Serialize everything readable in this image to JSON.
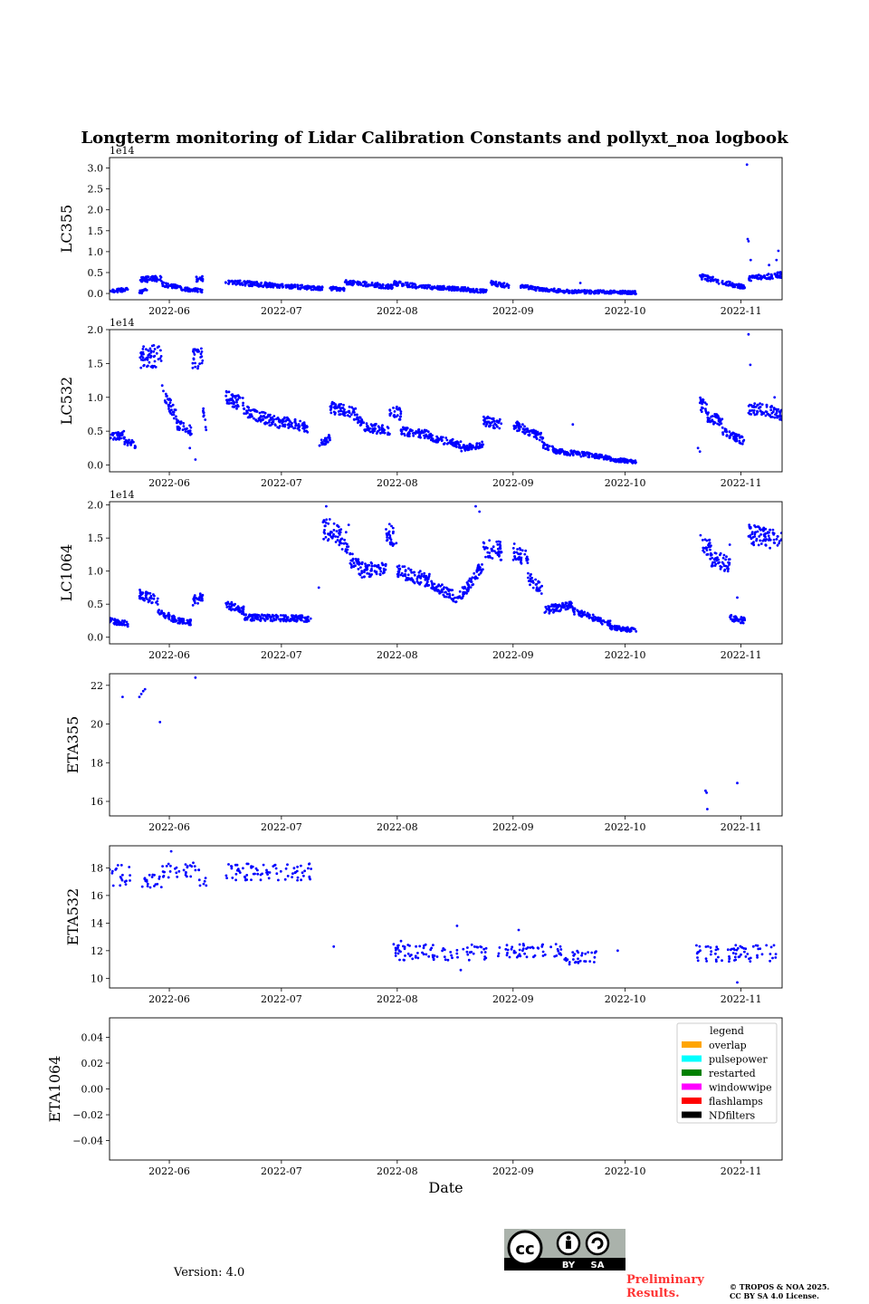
{
  "footer": {
    "version": "Version: 4.0",
    "preliminary_line1": "Preliminary",
    "preliminary_line2": "Results.",
    "copyright_line1": "© TROPOS & NOA 2025.",
    "copyright_line2": "CC BY SA 4.0 License.",
    "cc_badge": {
      "main": "cc",
      "by": "BY",
      "sa": "SA"
    }
  },
  "colors": {
    "points": "#0000ff",
    "axes": "#000000",
    "cc_bg": "#aab2ab",
    "cc_band": "#000000"
  },
  "chart_data": {
    "type": "scatter",
    "title": "Longterm monitoring of Lidar Calibration Constants and pollyxt_noa logbook",
    "xlabel": "Date",
    "x_range_days": [
      -16,
      164
    ],
    "x_axis_origin": "2022-06-01",
    "x_ticks": [
      {
        "label": "2022-06",
        "day": 0
      },
      {
        "label": "2022-07",
        "day": 30
      },
      {
        "label": "2022-08",
        "day": 61
      },
      {
        "label": "2022-09",
        "day": 92
      },
      {
        "label": "2022-10",
        "day": 122
      },
      {
        "label": "2022-11",
        "day": 153
      }
    ],
    "panels": [
      {
        "ylabel": "LC355",
        "offset_text": "1e14",
        "ylim": [
          -0.15,
          3.25
        ],
        "yticks": [
          "0.0",
          "0.5",
          "1.0",
          "1.5",
          "2.0",
          "2.5",
          "3.0"
        ],
        "ytick_values": [
          0,
          0.5,
          1,
          1.5,
          2,
          2.5,
          3
        ],
        "segments": [
          [
            -16,
            -11,
            0.05,
            0.1
          ],
          [
            -8,
            -6,
            0.03,
            0.08
          ],
          [
            -8,
            -2,
            0.33,
            0.36
          ],
          [
            -2,
            3,
            0.22,
            0.14
          ],
          [
            3,
            6,
            0.12,
            0.08
          ],
          [
            6,
            9,
            0.1,
            0.06
          ],
          [
            7,
            9,
            0.35,
            0.35
          ],
          [
            15,
            27,
            0.28,
            0.2
          ],
          [
            27,
            38,
            0.2,
            0.14
          ],
          [
            38,
            41,
            0.13,
            0.12
          ],
          [
            43,
            47,
            0.12,
            0.1
          ],
          [
            47,
            56,
            0.27,
            0.2
          ],
          [
            56,
            60,
            0.18,
            0.16
          ],
          [
            60,
            66,
            0.25,
            0.18
          ],
          [
            66,
            75,
            0.17,
            0.13
          ],
          [
            75,
            80,
            0.12,
            0.1
          ],
          [
            80,
            85,
            0.08,
            0.05
          ],
          [
            86,
            91,
            0.25,
            0.18
          ],
          [
            94,
            99,
            0.18,
            0.1
          ],
          [
            99,
            108,
            0.1,
            0.04
          ],
          [
            108,
            114,
            0.05,
            0.03
          ],
          [
            114,
            125,
            0.04,
            0.02
          ],
          [
            142,
            146,
            0.4,
            0.32
          ],
          [
            146,
            154,
            0.3,
            0.15
          ],
          [
            155,
            164,
            0.35,
            0.45
          ]
        ],
        "extra_points": [
          [
            154.6,
            3.08
          ],
          [
            154.8,
            1.3
          ],
          [
            155,
            1.25
          ],
          [
            155.6,
            0.8
          ],
          [
            163,
            1.02
          ],
          [
            162.5,
            0.8
          ],
          [
            160.5,
            0.68
          ],
          [
            110,
            0.25
          ]
        ]
      },
      {
        "ylabel": "LC532",
        "offset_text": "1e14",
        "ylim": [
          -0.1,
          2.0
        ],
        "yticks": [
          "0.0",
          "0.5",
          "1.0",
          "1.5",
          "2.0"
        ],
        "ytick_values": [
          0,
          0.5,
          1,
          1.5,
          2
        ],
        "segments": [
          [
            -16,
            -12,
            0.4,
            0.45
          ],
          [
            -12,
            -9,
            0.35,
            0.3
          ],
          [
            -8,
            -2,
            1.58,
            1.62
          ],
          [
            -2,
            2,
            1.1,
            0.7
          ],
          [
            2,
            6,
            0.6,
            0.5
          ],
          [
            6,
            9,
            1.55,
            1.6
          ],
          [
            9,
            10,
            0.8,
            0.5
          ],
          [
            15,
            20,
            1.0,
            0.9
          ],
          [
            20,
            30,
            0.8,
            0.6
          ],
          [
            30,
            37,
            0.65,
            0.55
          ],
          [
            40,
            43,
            0.3,
            0.4
          ],
          [
            43,
            50,
            0.85,
            0.75
          ],
          [
            50,
            54,
            0.7,
            0.5
          ],
          [
            54,
            59,
            0.55,
            0.5
          ],
          [
            59,
            62,
            0.82,
            0.75
          ],
          [
            62,
            70,
            0.5,
            0.45
          ],
          [
            70,
            78,
            0.4,
            0.3
          ],
          [
            78,
            84,
            0.25,
            0.3
          ],
          [
            84,
            89,
            0.65,
            0.6
          ],
          [
            92,
            96,
            0.6,
            0.5
          ],
          [
            96,
            100,
            0.5,
            0.4
          ],
          [
            100,
            104,
            0.3,
            0.2
          ],
          [
            104,
            112,
            0.2,
            0.15
          ],
          [
            112,
            118,
            0.15,
            0.1
          ],
          [
            118,
            125,
            0.08,
            0.05
          ],
          [
            142,
            144,
            0.9,
            0.85
          ],
          [
            144,
            148,
            0.7,
            0.65
          ],
          [
            148,
            154,
            0.5,
            0.35
          ],
          [
            155,
            164,
            0.85,
            0.75
          ]
        ],
        "extra_points": [
          [
            155,
            1.93
          ],
          [
            155.5,
            1.48
          ],
          [
            141.5,
            0.25
          ],
          [
            142,
            0.2
          ],
          [
            108,
            0.6
          ],
          [
            7,
            0.08
          ],
          [
            5.5,
            0.25
          ],
          [
            162,
            1.0
          ]
        ]
      },
      {
        "ylabel": "LC1064",
        "offset_text": "1e14",
        "ylim": [
          -0.1,
          2.05
        ],
        "yticks": [
          "0.0",
          "0.5",
          "1.0",
          "1.5",
          "2.0"
        ],
        "ytick_values": [
          0,
          0.5,
          1,
          1.5,
          2
        ],
        "segments": [
          [
            -16,
            -11,
            0.25,
            0.2
          ],
          [
            -8,
            -3,
            0.65,
            0.55
          ],
          [
            -3,
            2,
            0.4,
            0.25
          ],
          [
            2,
            6,
            0.25,
            0.22
          ],
          [
            6,
            9,
            0.55,
            0.6
          ],
          [
            15,
            20,
            0.5,
            0.4
          ],
          [
            20,
            38,
            0.3,
            0.28
          ],
          [
            41,
            44,
            1.6,
            1.65
          ],
          [
            44,
            48,
            1.6,
            1.4
          ],
          [
            48,
            52,
            1.2,
            1.0
          ],
          [
            52,
            58,
            1.0,
            1.05
          ],
          [
            58,
            61,
            1.6,
            1.5
          ],
          [
            61,
            70,
            1.0,
            0.85
          ],
          [
            70,
            77,
            0.8,
            0.6
          ],
          [
            77,
            84,
            0.55,
            1.1
          ],
          [
            84,
            89,
            1.35,
            1.3
          ],
          [
            92,
            96,
            1.3,
            1.2
          ],
          [
            96,
            100,
            0.9,
            0.7
          ],
          [
            100,
            108,
            0.4,
            0.5
          ],
          [
            108,
            118,
            0.4,
            0.2
          ],
          [
            118,
            125,
            0.15,
            0.1
          ],
          [
            142,
            145,
            1.5,
            1.3
          ],
          [
            145,
            150,
            1.2,
            1.1
          ],
          [
            150,
            154,
            0.3,
            0.25
          ],
          [
            155,
            164,
            1.55,
            1.45
          ]
        ],
        "extra_points": [
          [
            82,
            1.98
          ],
          [
            83,
            1.9
          ],
          [
            42,
            1.98
          ],
          [
            48,
            1.7
          ],
          [
            150,
            1.4
          ],
          [
            152,
            0.6
          ],
          [
            40,
            0.75
          ]
        ]
      },
      {
        "ylabel": "ETA355",
        "offset_text": "",
        "ylim": [
          15.25,
          22.6
        ],
        "yticks": [
          "16",
          "18",
          "20",
          "22"
        ],
        "ytick_values": [
          16,
          18,
          20,
          22
        ],
        "points": [
          [
            -12.5,
            21.4
          ],
          [
            -8,
            21.4
          ],
          [
            -7.5,
            21.55
          ],
          [
            -7,
            21.7
          ],
          [
            -6.5,
            21.8
          ],
          [
            -2.5,
            20.1
          ],
          [
            7,
            22.4
          ],
          [
            143.5,
            16.55
          ],
          [
            143.8,
            16.45
          ],
          [
            144,
            15.6
          ],
          [
            152,
            16.95
          ]
        ]
      },
      {
        "ylabel": "ETA532",
        "offset_text": "",
        "ylim": [
          9.3,
          19.6
        ],
        "yticks": [
          "10",
          "12",
          "14",
          "16",
          "18"
        ],
        "ytick_values": [
          10,
          12,
          14,
          16,
          18
        ],
        "segments_scatter": [
          [
            -16,
            -10,
            17.5,
            0.8
          ],
          [
            -8,
            -2,
            17.0,
            0.5
          ],
          [
            -2,
            8,
            17.8,
            0.6
          ],
          [
            8,
            10,
            17.0,
            0.3
          ],
          [
            15,
            38,
            17.7,
            0.6
          ],
          [
            60,
            85,
            11.9,
            0.6
          ],
          [
            88,
            105,
            12.0,
            0.5
          ],
          [
            105,
            115,
            11.5,
            0.5
          ],
          [
            141,
            163,
            11.8,
            0.6
          ]
        ],
        "extra_points": [
          [
            0.5,
            19.2
          ],
          [
            77,
            13.8
          ],
          [
            93.5,
            13.5
          ],
          [
            44,
            12.3
          ],
          [
            152,
            9.7
          ],
          [
            120,
            12.0
          ],
          [
            78,
            10.6
          ],
          [
            62,
            12.7
          ]
        ]
      },
      {
        "ylabel": "ETA1064",
        "offset_text": "",
        "ylim": [
          -0.055,
          0.055
        ],
        "yticks": [
          "−0.04",
          "−0.02",
          "0.00",
          "0.02",
          "0.04"
        ],
        "ytick_values": [
          -0.04,
          -0.02,
          0,
          0.02,
          0.04
        ],
        "points": [],
        "legend": {
          "title": "legend",
          "placement": "top-right",
          "entries": [
            {
              "label": "overlap",
              "color": "#ffa500"
            },
            {
              "label": "pulsepower",
              "color": "#00ffff"
            },
            {
              "label": "restarted",
              "color": "#008000"
            },
            {
              "label": "windowwipe",
              "color": "#ff00ff"
            },
            {
              "label": "flashlamps",
              "color": "#ff0000"
            },
            {
              "label": "NDfilters",
              "color": "#000000"
            }
          ]
        }
      }
    ]
  }
}
